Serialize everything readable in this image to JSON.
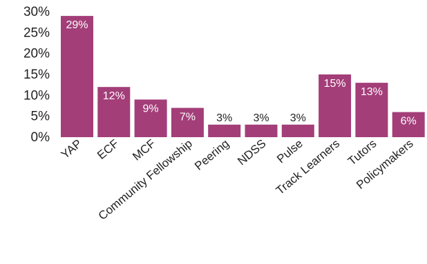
{
  "chart_data": {
    "type": "bar",
    "categories": [
      "YAP",
      "ECF",
      "MCF",
      "Community Fellowship",
      "Peering",
      "NDSS",
      "Pulse",
      "Track Learners",
      "Tutors",
      "Policymakers"
    ],
    "values": [
      29,
      12,
      9,
      7,
      3,
      3,
      3,
      15,
      13,
      6
    ],
    "data_labels": [
      "29%",
      "12%",
      "9%",
      "7%",
      "3%",
      "3%",
      "3%",
      "15%",
      "13%",
      "6%"
    ],
    "y_ticks": [
      "0%",
      "5%",
      "10%",
      "15%",
      "20%",
      "25%",
      "30%"
    ],
    "ylim": [
      0,
      30
    ],
    "title": "",
    "xlabel": "",
    "ylabel": "",
    "grid": false,
    "legend": "none",
    "bar_color": "#a33e79"
  }
}
